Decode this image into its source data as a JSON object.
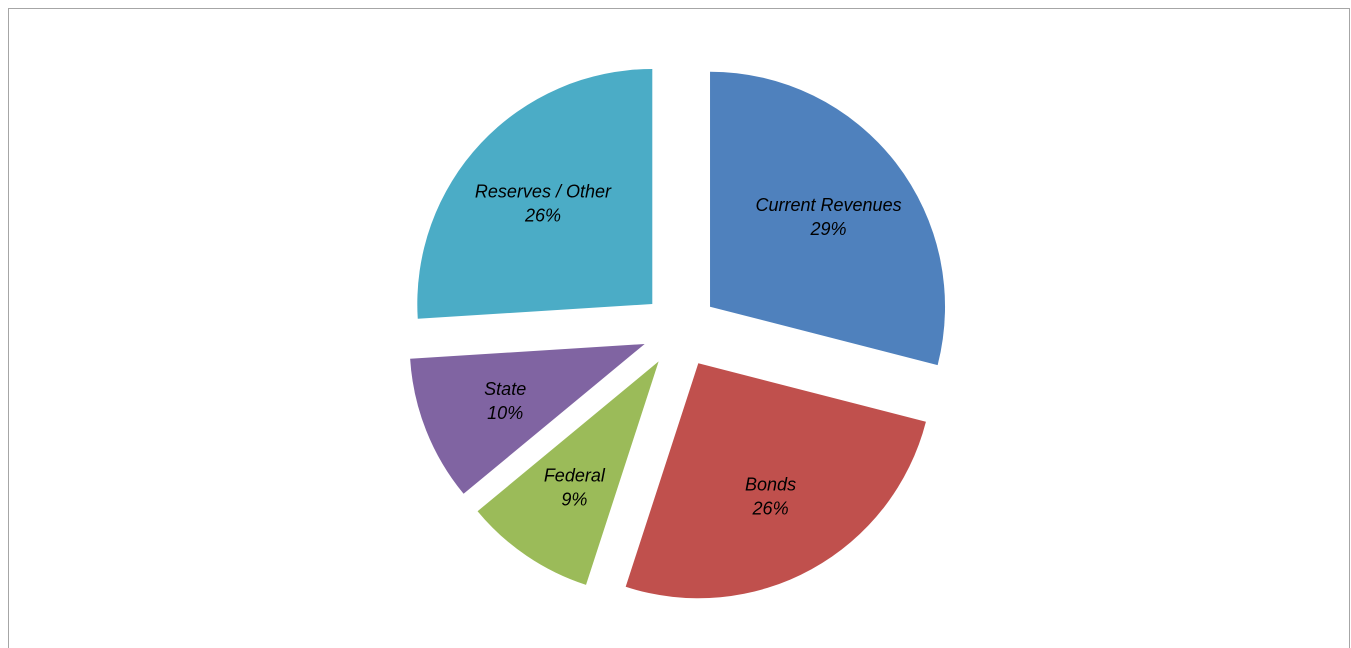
{
  "chart_data": {
    "type": "pie",
    "title": "",
    "legend": "none",
    "slices": [
      {
        "label": "Current Revenues",
        "value": 29,
        "pct_label": "29%",
        "color": "#4f81bd"
      },
      {
        "label": "Bonds",
        "value": 26,
        "pct_label": "26%",
        "color": "#c0504d"
      },
      {
        "label": "Federal",
        "value": 9,
        "pct_label": "9%",
        "color": "#9bbb59"
      },
      {
        "label": "State",
        "value": 10,
        "pct_label": "10%",
        "color": "#8064a2"
      },
      {
        "label": "Reserves / Other",
        "value": 26,
        "pct_label": "26%",
        "color": "#4bacc6"
      }
    ]
  }
}
